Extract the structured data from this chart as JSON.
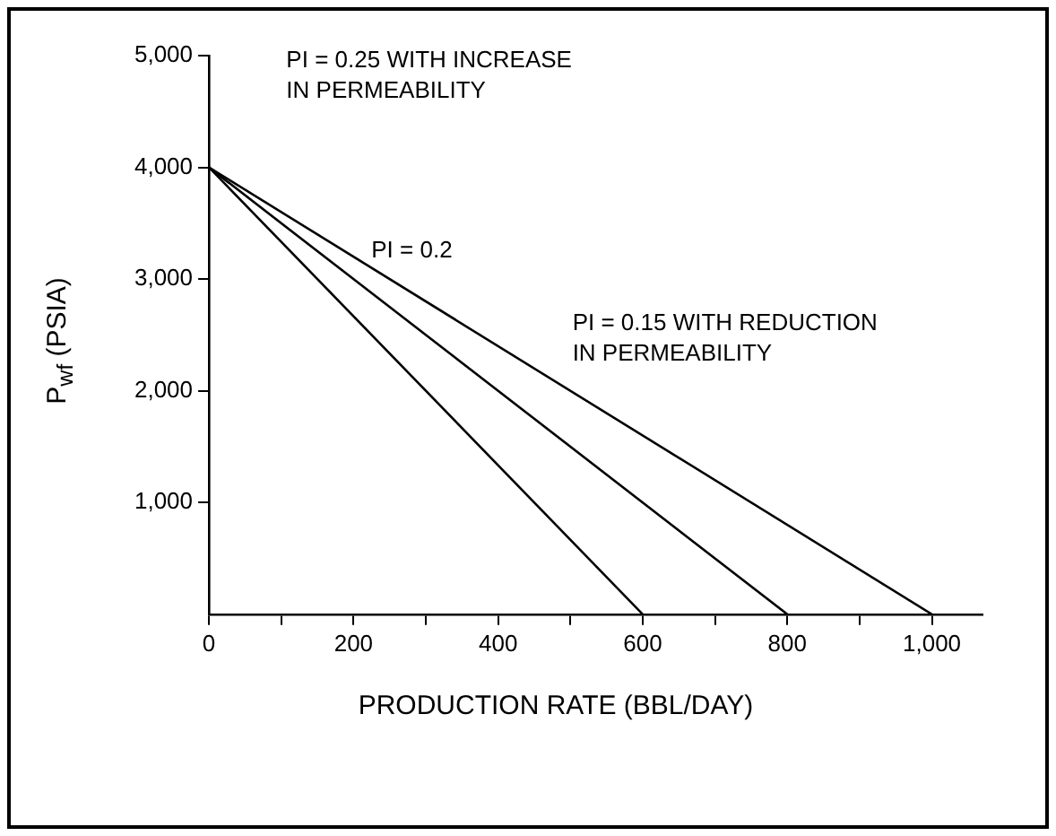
{
  "chart_data": {
    "type": "line",
    "xlabel": "PRODUCTION RATE (BBL/DAY)",
    "ylabel": "P$_{wf}$ (PSIA)",
    "series": [
      {
        "color": "#000000",
        "x": [
          0,
          600
        ],
        "values": [
          4000,
          0
        ]
      },
      {
        "color": "#000000",
        "x": [
          0,
          800
        ],
        "values": [
          4000,
          0
        ]
      },
      {
        "color": "#000000",
        "x": [
          0,
          1000
        ],
        "values": [
          4000,
          0
        ]
      }
    ],
    "xlim": [
      0,
      1070
    ],
    "ylim": [
      0,
      5000
    ],
    "xticks": [
      0,
      {
        "value": 100,
        "label": null
      },
      200,
      {
        "value": 300,
        "label": null
      },
      400,
      {
        "value": 500,
        "label": null
      },
      600,
      {
        "value": 700,
        "label": null
      },
      800,
      {
        "value": 900,
        "label": null
      },
      {
        "value": 1000,
        "label": "1,000"
      }
    ],
    "yticks": [
      {
        "value": 1000,
        "label": "1,000"
      },
      {
        "value": 2000,
        "label": "2,000"
      },
      {
        "value": 3000,
        "label": "3,000"
      },
      {
        "value": 4000,
        "label": "4,000"
      },
      {
        "value": 5000,
        "label": "5,000"
      }
    ],
    "grid": false,
    "legend": false,
    "marker": "none",
    "line_style": "solid",
    "annotations": [
      "PI = 0.25 WITH INCREASE\nIN PERMEABILITY",
      "PI = 0.2",
      "PI = 0.15 WITH REDUCTION\nIN PERMEABILITY"
    ]
  }
}
